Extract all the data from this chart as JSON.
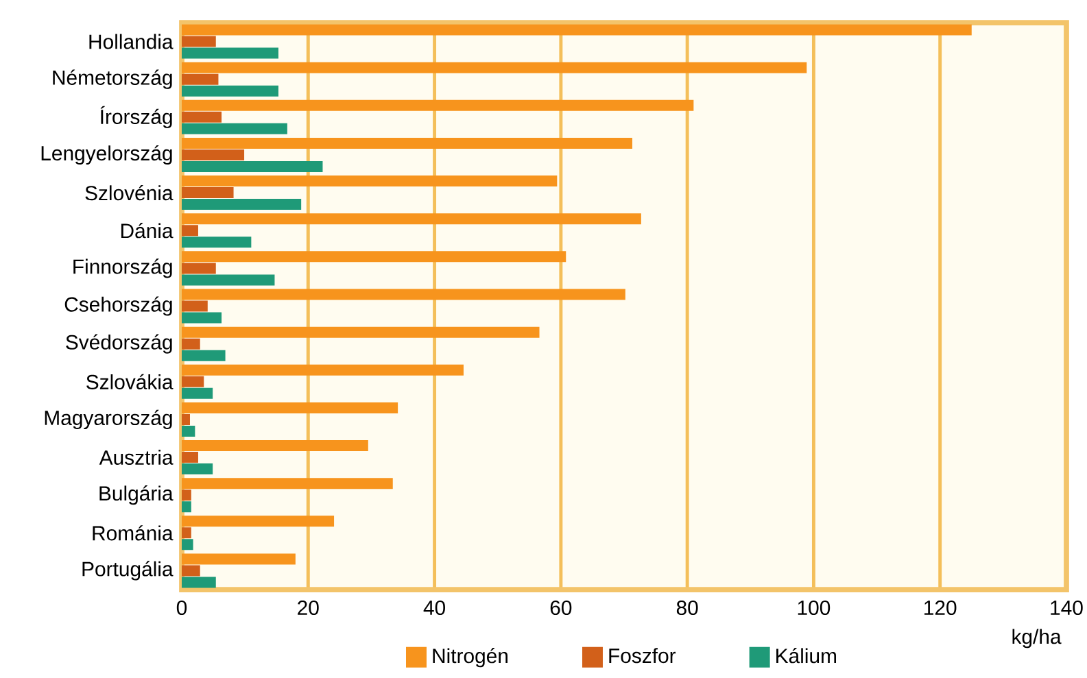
{
  "chart_data": {
    "type": "bar",
    "orientation": "horizontal",
    "xlabel": "kg/ha",
    "categories": [
      "Hollandia",
      "Németország",
      "Írország",
      "Lengyelország",
      "Szlovénia",
      "Dánia",
      "Finnország",
      "Csehország",
      "Svédország",
      "Szlovákia",
      "Magyarország",
      "Ausztria",
      "Bulgária",
      "Románia",
      "Portugália"
    ],
    "series": [
      {
        "name": "Nitrogén",
        "color": "#f7941d",
        "values": [
          125,
          98.9,
          81.0,
          71.3,
          59.4,
          72.7,
          60.8,
          70.2,
          56.6,
          44.6,
          34.2,
          29.5,
          33.4,
          24.1,
          18.0
        ]
      },
      {
        "name": "Foszfor",
        "color": "#d2601a",
        "values": [
          5.4,
          5.8,
          6.3,
          9.9,
          8.2,
          2.6,
          5.4,
          4.1,
          2.9,
          3.5,
          1.3,
          2.6,
          1.5,
          1.5,
          2.9
        ]
      },
      {
        "name": "Kálium",
        "color": "#1f9a78",
        "values": [
          15.3,
          15.3,
          16.7,
          22.3,
          18.9,
          11.0,
          14.7,
          6.3,
          6.9,
          4.9,
          2.1,
          4.9,
          1.5,
          1.8,
          5.4
        ]
      }
    ],
    "xlim": [
      0,
      140
    ],
    "xticks": [
      0,
      20,
      40,
      60,
      80,
      100,
      120,
      140
    ],
    "grid": "x",
    "legend": "bottom"
  }
}
